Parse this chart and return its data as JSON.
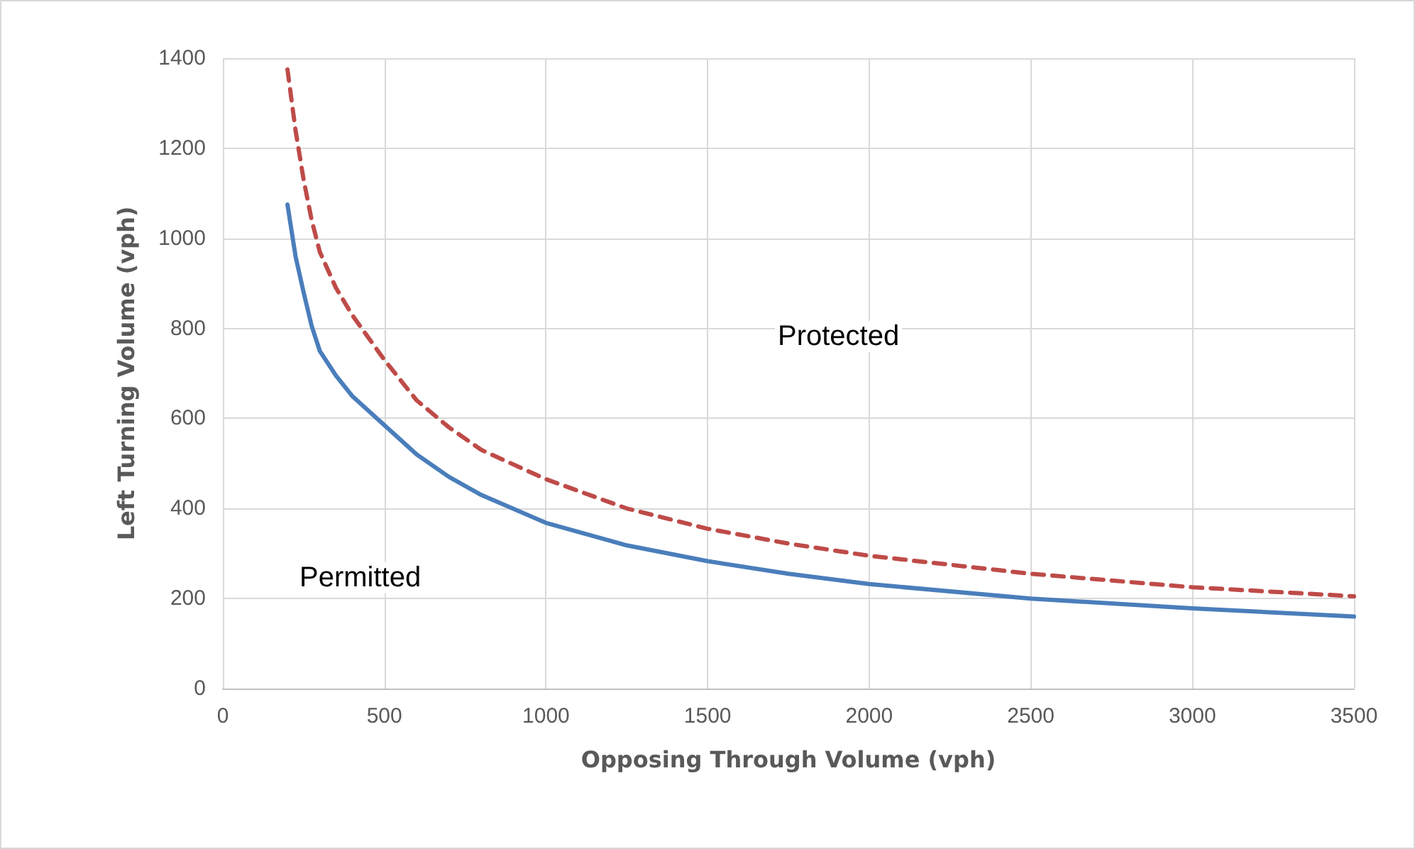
{
  "chart_data": {
    "type": "line",
    "xlabel": "Opposing Through Volume (vph)",
    "ylabel": "Left Turning Volume (vph)",
    "xlim": [
      0,
      3500
    ],
    "xticks": [
      0,
      500,
      1000,
      1500,
      2000,
      2500,
      3000,
      3500
    ],
    "ylim": [
      0,
      1400
    ],
    "yticks": [
      0,
      200,
      400,
      600,
      800,
      1000,
      1200,
      1400
    ],
    "grid": true,
    "marker": "none",
    "annotations": [
      "Protected",
      "Permitted"
    ],
    "series": [
      {
        "color": "#4a7ebb",
        "line_style": "solid",
        "x": [
          200,
          225,
          250,
          275,
          300,
          350,
          400,
          500,
          600,
          700,
          800,
          1000,
          1250,
          1500,
          1750,
          2000,
          2500,
          3000,
          3500
        ],
        "values": [
          1075,
          960,
          880,
          805,
          750,
          695,
          650,
          585,
          520,
          470,
          430,
          368,
          318,
          283,
          255,
          232,
          200,
          178,
          160
        ]
      },
      {
        "color": "#be4b48",
        "line_style": "dashed",
        "x": [
          200,
          225,
          250,
          275,
          300,
          350,
          400,
          500,
          600,
          700,
          800,
          1000,
          1250,
          1500,
          1750,
          2000,
          2500,
          3000,
          3500
        ],
        "values": [
          1375,
          1240,
          1130,
          1040,
          970,
          890,
          830,
          730,
          640,
          580,
          530,
          465,
          400,
          355,
          322,
          295,
          255,
          225,
          205
        ]
      }
    ]
  }
}
